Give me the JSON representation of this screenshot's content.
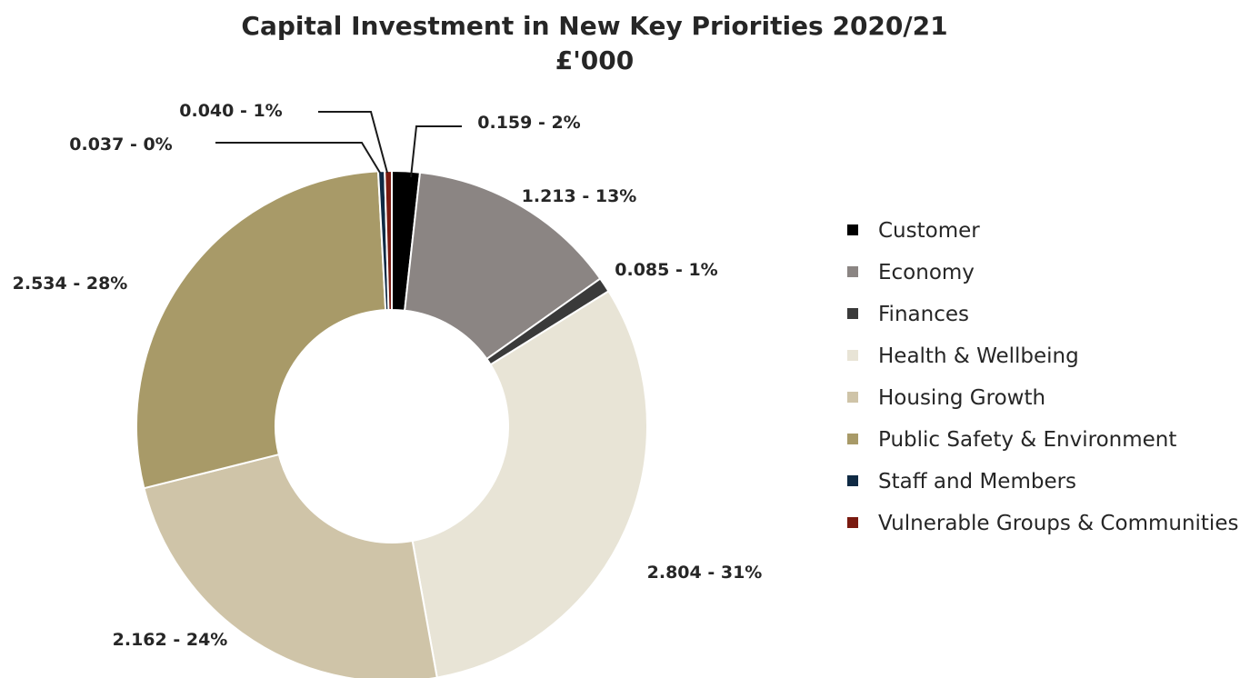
{
  "chart_data": {
    "type": "pie",
    "variant": "doughnut",
    "title": [
      "Capital Investment in New Key Priorities 2020/21",
      "£'000"
    ],
    "legend_position": "right",
    "categories": [
      "Customer",
      "Economy",
      "Finances",
      "Health & Wellbeing",
      "Housing Growth",
      "Public Safety & Environment",
      "Staff and Members",
      "Vulnerable Groups & Communities"
    ],
    "values": [
      0.159,
      1.213,
      0.085,
      2.804,
      2.162,
      2.534,
      0.037,
      0.04
    ],
    "colors": [
      "#000000",
      "#8b8583",
      "#3a3a3a",
      "#e8e4d6",
      "#cfc4a8",
      "#a89a68",
      "#0f2a44",
      "#7a1a10"
    ],
    "data_labels": [
      "0.159 - 2%",
      "1.213 - 13%",
      "0.085 - 1%",
      "2.804 - 31%",
      "2.162 - 24%",
      "2.534 - 28%",
      "0.037 - 0%",
      "0.040 - 1%"
    ]
  }
}
